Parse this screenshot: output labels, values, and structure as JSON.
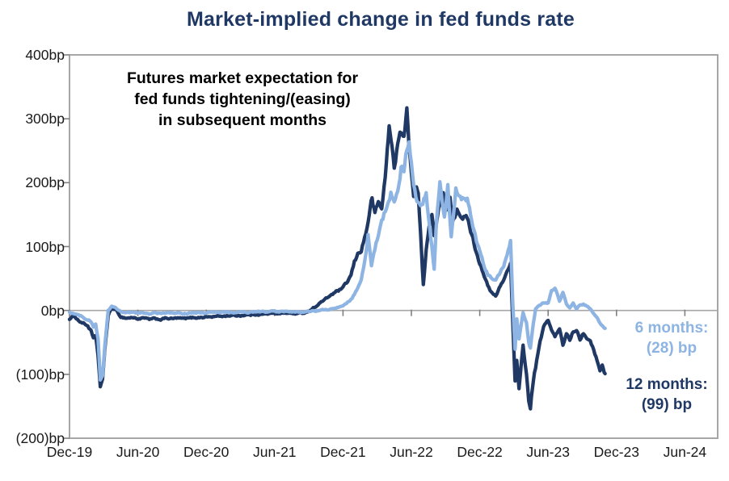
{
  "title": "Market-implied change in fed funds rate",
  "annotation": {
    "line1": "Futures market expectation for",
    "line2": "fed funds tightening/(easing)",
    "line3": "in subsequent months"
  },
  "colors": {
    "title": "#1F3864",
    "series_12m": "#1F3864",
    "series_6m": "#8DB4E2",
    "axis_frame": "#A6A6A6",
    "zero_line": "#A6A6A6",
    "tick": "#808080",
    "axis_text": "#1a1a1a",
    "annotation_text": "#000000"
  },
  "end_labels": {
    "six_months": {
      "line1": "6 months:",
      "line2": "(28) bp"
    },
    "twelve_months": {
      "line1": "12 months:",
      "line2": "(99) bp"
    }
  },
  "chart_data": {
    "type": "line",
    "title": "Market-implied change in fed funds rate",
    "xlabel": "",
    "ylabel": "",
    "unit": "bp",
    "grid": "zero-line-only",
    "legend_position": "end-of-line-labels",
    "x_unit": "months since Dec-2019",
    "xlim_months": [
      0,
      54
    ],
    "ylim": [
      -200,
      400
    ],
    "x_ticks": [
      "Dec-19",
      "Jun-20",
      "Dec-20",
      "Jun-21",
      "Dec-21",
      "Jun-22",
      "Dec-22",
      "Jun-23",
      "Dec-23",
      "Jun-24"
    ],
    "x_tick_months": [
      0,
      6,
      12,
      18,
      24,
      30,
      36,
      42,
      48,
      54
    ],
    "y_ticks": [
      "400bp",
      "300bp",
      "200bp",
      "100bp",
      "0bp",
      "(100)bp",
      "(200)bp"
    ],
    "y_tick_values": [
      400,
      300,
      200,
      100,
      0,
      -100,
      -200
    ],
    "series": [
      {
        "name": "12 months",
        "end_label": "12 months: (99) bp",
        "final_value_bp": -99,
        "color": "#1F3864",
        "points": [
          [
            0,
            -14
          ],
          [
            0.4,
            -8
          ],
          [
            0.8,
            -16
          ],
          [
            1.2,
            -20
          ],
          [
            1.6,
            -24
          ],
          [
            1.9,
            -33
          ],
          [
            2.1,
            -45
          ],
          [
            2.3,
            -40
          ],
          [
            2.5,
            -70
          ],
          [
            2.7,
            -120
          ],
          [
            2.9,
            -112
          ],
          [
            3.1,
            -60
          ],
          [
            3.4,
            -8
          ],
          [
            3.7,
            4
          ],
          [
            4.1,
            0
          ],
          [
            4.5,
            -10
          ],
          [
            5,
            -12
          ],
          [
            5.5,
            -11
          ],
          [
            6,
            -13
          ],
          [
            6.5,
            -12
          ],
          [
            7,
            -14
          ],
          [
            7.5,
            -13
          ],
          [
            8,
            -14
          ],
          [
            8.5,
            -12
          ],
          [
            9,
            -13
          ],
          [
            9.5,
            -12
          ],
          [
            10,
            -13
          ],
          [
            10.5,
            -12
          ],
          [
            11,
            -11
          ],
          [
            11.5,
            -11
          ],
          [
            12,
            -10
          ],
          [
            12.5,
            -10
          ],
          [
            13,
            -9
          ],
          [
            13.5,
            -9
          ],
          [
            14,
            -8
          ],
          [
            14.5,
            -8
          ],
          [
            15,
            -8
          ],
          [
            15.5,
            -7
          ],
          [
            16,
            -7
          ],
          [
            16.5,
            -6
          ],
          [
            17,
            -6
          ],
          [
            17.5,
            -5
          ],
          [
            18,
            -5
          ],
          [
            18.5,
            -4
          ],
          [
            19,
            -4
          ],
          [
            19.5,
            -5
          ],
          [
            20,
            -5
          ],
          [
            20.5,
            -4
          ],
          [
            21,
            -1
          ],
          [
            21.5,
            5
          ],
          [
            22,
            12
          ],
          [
            22.5,
            18
          ],
          [
            23,
            25
          ],
          [
            23.5,
            30
          ],
          [
            24,
            35
          ],
          [
            24.4,
            45
          ],
          [
            24.7,
            55
          ],
          [
            25,
            75
          ],
          [
            25.3,
            88
          ],
          [
            25.6,
            95
          ],
          [
            26,
            120
          ],
          [
            26.3,
            150
          ],
          [
            26.55,
            176
          ],
          [
            26.8,
            150
          ],
          [
            27.1,
            171
          ],
          [
            27.4,
            158
          ],
          [
            27.8,
            230
          ],
          [
            28.05,
            287
          ],
          [
            28.3,
            255
          ],
          [
            28.5,
            226
          ],
          [
            28.8,
            262
          ],
          [
            29.1,
            280
          ],
          [
            29.35,
            268
          ],
          [
            29.6,
            316
          ],
          [
            29.8,
            250
          ],
          [
            30,
            218
          ],
          [
            30.2,
            180
          ],
          [
            30.45,
            196
          ],
          [
            30.6,
            179
          ],
          [
            30.8,
            120
          ],
          [
            31.05,
            42
          ],
          [
            31.3,
            95
          ],
          [
            31.55,
            130
          ],
          [
            31.8,
            147
          ],
          [
            32,
            117
          ],
          [
            32.4,
            160
          ],
          [
            32.8,
            183
          ],
          [
            33,
            153
          ],
          [
            33.4,
            172
          ],
          [
            33.6,
            139
          ],
          [
            34,
            160
          ],
          [
            34.4,
            150
          ],
          [
            34.9,
            143
          ],
          [
            35.3,
            120
          ],
          [
            35.6,
            98
          ],
          [
            36,
            75
          ],
          [
            36.4,
            55
          ],
          [
            36.7,
            38
          ],
          [
            37,
            28
          ],
          [
            37.4,
            22
          ],
          [
            37.8,
            38
          ],
          [
            38.2,
            52
          ],
          [
            38.5,
            65
          ],
          [
            38.7,
            77
          ],
          [
            38.9,
            -20
          ],
          [
            39.1,
            -110
          ],
          [
            39.25,
            -80
          ],
          [
            39.45,
            -127
          ],
          [
            39.8,
            -55
          ],
          [
            40.1,
            -100
          ],
          [
            40.3,
            -143
          ],
          [
            40.45,
            -150
          ],
          [
            40.7,
            -110
          ],
          [
            40.9,
            -89
          ],
          [
            41.3,
            -50
          ],
          [
            41.6,
            -26
          ],
          [
            42,
            -15
          ],
          [
            42.3,
            -30
          ],
          [
            42.6,
            -42
          ],
          [
            42.8,
            -35
          ],
          [
            43,
            -29
          ],
          [
            43.3,
            -55
          ],
          [
            43.6,
            -36
          ],
          [
            43.9,
            -45
          ],
          [
            44.2,
            -33
          ],
          [
            44.5,
            -30
          ],
          [
            44.8,
            -44
          ],
          [
            45.1,
            -35
          ],
          [
            45.4,
            -42
          ],
          [
            45.7,
            -50
          ],
          [
            46,
            -60
          ],
          [
            46.3,
            -78
          ],
          [
            46.55,
            -96
          ],
          [
            46.75,
            -88
          ],
          [
            47,
            -99
          ]
        ]
      },
      {
        "name": "6 months",
        "end_label": "6 months: (28) bp",
        "final_value_bp": -28,
        "color": "#8DB4E2",
        "points": [
          [
            0,
            -3
          ],
          [
            0.4,
            -5
          ],
          [
            0.8,
            -8
          ],
          [
            1.2,
            -10
          ],
          [
            1.6,
            -14
          ],
          [
            1.9,
            -18
          ],
          [
            2.1,
            -25
          ],
          [
            2.3,
            -22
          ],
          [
            2.5,
            -45
          ],
          [
            2.7,
            -110
          ],
          [
            2.9,
            -102
          ],
          [
            3.1,
            -55
          ],
          [
            3.4,
            0
          ],
          [
            3.7,
            6
          ],
          [
            4.1,
            3
          ],
          [
            4.5,
            -2
          ],
          [
            5,
            -4
          ],
          [
            5.5,
            -3
          ],
          [
            6,
            -4
          ],
          [
            6.5,
            -4
          ],
          [
            7,
            -5
          ],
          [
            7.5,
            -4
          ],
          [
            8,
            -5
          ],
          [
            8.5,
            -4
          ],
          [
            9,
            -4
          ],
          [
            9.5,
            -4
          ],
          [
            10,
            -5
          ],
          [
            10.5,
            -4
          ],
          [
            11,
            -4
          ],
          [
            11.5,
            -4
          ],
          [
            12,
            -4
          ],
          [
            12.5,
            -3
          ],
          [
            13,
            -3
          ],
          [
            13.5,
            -3
          ],
          [
            14,
            -3
          ],
          [
            14.5,
            -3
          ],
          [
            15,
            -3
          ],
          [
            15.5,
            -3
          ],
          [
            16,
            -3
          ],
          [
            16.5,
            -2
          ],
          [
            17,
            -2
          ],
          [
            17.5,
            -2
          ],
          [
            18,
            -2
          ],
          [
            18.5,
            -2
          ],
          [
            19,
            -2
          ],
          [
            19.5,
            -3
          ],
          [
            20,
            -3
          ],
          [
            20.5,
            -3
          ],
          [
            21,
            -2
          ],
          [
            21.5,
            -1
          ],
          [
            22,
            0
          ],
          [
            22.5,
            1
          ],
          [
            23,
            2
          ],
          [
            23.5,
            4
          ],
          [
            24,
            8
          ],
          [
            24.4,
            13
          ],
          [
            24.7,
            18
          ],
          [
            25,
            25
          ],
          [
            25.3,
            35
          ],
          [
            25.6,
            48
          ],
          [
            26,
            85
          ],
          [
            26.2,
            116
          ],
          [
            26.5,
            70
          ],
          [
            26.9,
            105
          ],
          [
            27.2,
            125
          ],
          [
            27.6,
            150
          ],
          [
            27.9,
            170
          ],
          [
            28.2,
            185
          ],
          [
            28.5,
            165
          ],
          [
            28.8,
            190
          ],
          [
            29.1,
            225
          ],
          [
            29.35,
            215
          ],
          [
            29.6,
            250
          ],
          [
            29.8,
            268
          ],
          [
            30,
            230
          ],
          [
            30.2,
            200
          ],
          [
            30.5,
            170
          ],
          [
            30.8,
            166
          ],
          [
            31.1,
            175
          ],
          [
            31.3,
            180
          ],
          [
            31.5,
            149
          ],
          [
            31.8,
            100
          ],
          [
            32,
            63
          ],
          [
            32.25,
            150
          ],
          [
            32.5,
            204
          ],
          [
            32.9,
            147
          ],
          [
            33.2,
            195
          ],
          [
            33.5,
            116
          ],
          [
            33.9,
            189
          ],
          [
            34.4,
            176
          ],
          [
            34.9,
            172
          ],
          [
            35.3,
            140
          ],
          [
            35.6,
            115
          ],
          [
            36,
            90
          ],
          [
            36.4,
            68
          ],
          [
            36.7,
            56
          ],
          [
            37,
            52
          ],
          [
            37.4,
            50
          ],
          [
            37.8,
            60
          ],
          [
            38.2,
            75
          ],
          [
            38.5,
            95
          ],
          [
            38.7,
            111
          ],
          [
            38.9,
            10
          ],
          [
            39.1,
            -60
          ],
          [
            39.25,
            -13
          ],
          [
            39.45,
            -44
          ],
          [
            39.8,
            -4
          ],
          [
            40.1,
            -20
          ],
          [
            40.3,
            -50
          ],
          [
            40.45,
            -60
          ],
          [
            40.7,
            -20
          ],
          [
            40.9,
            3
          ],
          [
            41.3,
            8
          ],
          [
            41.6,
            12
          ],
          [
            42,
            12
          ],
          [
            42.3,
            30
          ],
          [
            42.6,
            35
          ],
          [
            42.8,
            25
          ],
          [
            43,
            15
          ],
          [
            43.3,
            28
          ],
          [
            43.6,
            10
          ],
          [
            43.9,
            5
          ],
          [
            44.2,
            12
          ],
          [
            44.5,
            3
          ],
          [
            44.8,
            8
          ],
          [
            45.1,
            9
          ],
          [
            45.4,
            6
          ],
          [
            45.7,
            2
          ],
          [
            46,
            -5
          ],
          [
            46.3,
            -12
          ],
          [
            46.55,
            -20
          ],
          [
            46.75,
            -24
          ],
          [
            47,
            -28
          ]
        ]
      }
    ]
  }
}
